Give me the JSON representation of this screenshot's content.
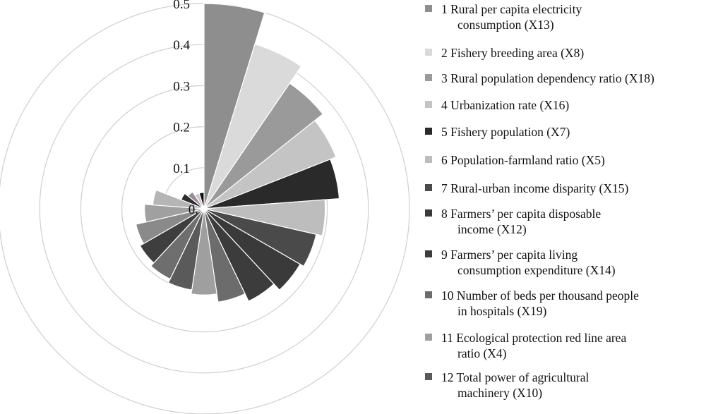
{
  "chart_data": {
    "type": "polar-area",
    "title": "",
    "r_ticks": [
      "0.",
      "0.1",
      "0.2",
      "0.3",
      "0.4",
      "0.5"
    ],
    "r_max": 0.5,
    "grid": true,
    "legend_position": "right",
    "categories": [
      "1 Rural per capita electricity consumption (X13)",
      "2 Fishery breeding area (X8)",
      "3 Rural population dependency ratio (X18)",
      "4 Urbanization rate (X16)",
      "5 Fishery population (X7)",
      "6 Population-farmland ratio (X5)",
      "7 Rural-urban income disparity (X15)",
      "8 Farmers’ per capita disposable income (X12)",
      "9 Farmers’ per capita living consumption expenditure (X14)",
      "10 Number of beds per thousand people in hospitals (X19)",
      "11 Ecological protection red line area ratio (X4)",
      "12 Total power of agricultural machinery (X10)",
      "",
      "",
      "",
      "",
      "",
      "",
      "",
      "",
      ""
    ],
    "values": [
      0.5,
      0.42,
      0.37,
      0.345,
      0.33,
      0.295,
      0.28,
      0.27,
      0.25,
      0.23,
      0.21,
      0.2,
      0.19,
      0.18,
      0.17,
      0.145,
      0.125,
      0.06,
      0.05,
      0.04,
      0.04
    ],
    "fills": [
      "#8e8e8e",
      "#dadada",
      "#9a9a9a",
      "#c4c4c4",
      "#2a2a2a",
      "#bdbdbd",
      "#4a4a4a",
      "#3a3a3a",
      "#3c3c3c",
      "#6c6c6c",
      "#9f9f9f",
      "#5a5a5a",
      "#6e6e6e",
      "#3e3e3e",
      "#8a8a8a",
      "#a0a0a0",
      "#b5b5b5",
      "#2e2e2e",
      "#9a8a9a",
      "#d0c4d0",
      "#111111"
    ]
  },
  "legend": {
    "items": [
      {
        "first": "1 Rural per capita electricity",
        "rest": "consumption (X13)",
        "color": "#8e8e8e"
      },
      {
        "first": "2 Fishery breeding area (X8)",
        "rest": "",
        "color": "#dadada"
      },
      {
        "first": "3 Rural population dependency ratio (X18)",
        "rest": "",
        "color": "#9a9a9a"
      },
      {
        "first": "4 Urbanization rate (X16)",
        "rest": "",
        "color": "#c4c4c4"
      },
      {
        "first": "5 Fishery population (X7)",
        "rest": "",
        "color": "#2a2a2a"
      },
      {
        "first": "6 Population-farmland ratio (X5)",
        "rest": "",
        "color": "#bdbdbd"
      },
      {
        "first": "7 Rural-urban income disparity (X15)",
        "rest": "",
        "color": "#4a4a4a"
      },
      {
        "first": "8 Farmers’ per capita disposable",
        "rest": "income (X12)",
        "color": "#3a3a3a"
      },
      {
        "first": "9 Farmers’ per capita living",
        "rest": "consumption expenditure (X14)",
        "color": "#3c3c3c"
      },
      {
        "first": "10 Number of beds per thousand people",
        "rest": "in hospitals (X19)",
        "color": "#6c6c6c"
      },
      {
        "first": "11 Ecological protection red line area",
        "rest": "ratio (X4)",
        "color": "#9f9f9f"
      },
      {
        "first": "12 Total power of agricultural",
        "rest": "machinery (X10)",
        "color": "#5a5a5a"
      }
    ]
  }
}
